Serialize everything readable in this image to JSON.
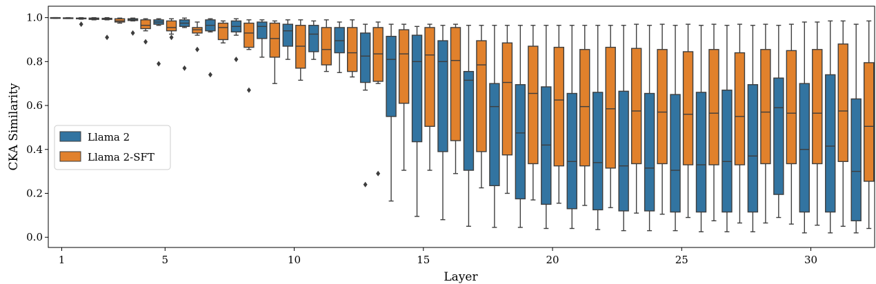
{
  "chart_data": {
    "type": "boxplot",
    "xlabel": "Layer",
    "ylabel": "CKA Similarity",
    "ylim": [
      -0.05,
      1.05
    ],
    "yticks": [
      0.0,
      0.2,
      0.4,
      0.6,
      0.8,
      1.0
    ],
    "ytick_labels": [
      "0.0",
      "0.2",
      "0.4",
      "0.6",
      "0.8",
      "1.0"
    ],
    "xticks": [
      1,
      5,
      10,
      15,
      20,
      25,
      30
    ],
    "xtick_labels": [
      "1",
      "5",
      "10",
      "15",
      "20",
      "25",
      "30"
    ],
    "layers": [
      1,
      2,
      3,
      4,
      5,
      6,
      7,
      8,
      9,
      10,
      11,
      12,
      13,
      14,
      15,
      16,
      17,
      18,
      19,
      20,
      21,
      22,
      23,
      24,
      25,
      26,
      27,
      28,
      29,
      30,
      31,
      32
    ],
    "legend_position": "center-left",
    "series": [
      {
        "name": "Llama 2",
        "color": "#3274a1",
        "boxes": [
          {
            "layer": 1,
            "low": 0.997,
            "q1": 0.998,
            "median": 0.999,
            "q3": 1.0,
            "high": 1.0,
            "outliers": []
          },
          {
            "layer": 2,
            "low": 0.993,
            "q1": 0.995,
            "median": 0.997,
            "q3": 0.998,
            "high": 1.0,
            "outliers": [
              0.97
            ]
          },
          {
            "layer": 3,
            "low": 0.99,
            "q1": 0.992,
            "median": 0.994,
            "q3": 0.997,
            "high": 1.0,
            "outliers": [
              0.91
            ]
          },
          {
            "layer": 4,
            "low": 0.985,
            "q1": 0.987,
            "median": 0.99,
            "q3": 0.995,
            "high": 0.998,
            "outliers": [
              0.93
            ]
          },
          {
            "layer": 5,
            "low": 0.965,
            "q1": 0.97,
            "median": 0.98,
            "q3": 0.99,
            "high": 0.995,
            "outliers": [
              0.79
            ]
          },
          {
            "layer": 6,
            "low": 0.955,
            "q1": 0.96,
            "median": 0.975,
            "q3": 0.99,
            "high": 0.998,
            "outliers": [
              0.77
            ]
          },
          {
            "layer": 7,
            "low": 0.935,
            "q1": 0.94,
            "median": 0.965,
            "q3": 0.99,
            "high": 0.995,
            "outliers": [
              0.74
            ]
          },
          {
            "layer": 8,
            "low": 0.92,
            "q1": 0.935,
            "median": 0.96,
            "q3": 0.985,
            "high": 0.995,
            "outliers": [
              0.81
            ]
          },
          {
            "layer": 9,
            "low": 0.82,
            "q1": 0.905,
            "median": 0.96,
            "q3": 0.98,
            "high": 0.99,
            "outliers": []
          },
          {
            "layer": 10,
            "low": 0.81,
            "q1": 0.87,
            "median": 0.94,
            "q3": 0.97,
            "high": 0.99,
            "outliers": []
          },
          {
            "layer": 11,
            "low": 0.81,
            "q1": 0.845,
            "median": 0.925,
            "q3": 0.965,
            "high": 0.985,
            "outliers": []
          },
          {
            "layer": 12,
            "low": 0.75,
            "q1": 0.84,
            "median": 0.895,
            "q3": 0.955,
            "high": 0.98,
            "outliers": []
          },
          {
            "layer": 13,
            "low": 0.67,
            "q1": 0.705,
            "median": 0.825,
            "q3": 0.93,
            "high": 0.97,
            "outliers": [
              0.24
            ]
          },
          {
            "layer": 14,
            "low": 0.165,
            "q1": 0.55,
            "median": 0.81,
            "q3": 0.915,
            "high": 0.97,
            "outliers": []
          },
          {
            "layer": 15,
            "low": 0.095,
            "q1": 0.435,
            "median": 0.8,
            "q3": 0.92,
            "high": 0.96,
            "outliers": []
          },
          {
            "layer": 16,
            "low": 0.08,
            "q1": 0.39,
            "median": 0.8,
            "q3": 0.895,
            "high": 0.965,
            "outliers": []
          },
          {
            "layer": 17,
            "low": 0.05,
            "q1": 0.305,
            "median": 0.715,
            "q3": 0.755,
            "high": 0.965,
            "outliers": []
          },
          {
            "layer": 18,
            "low": 0.045,
            "q1": 0.235,
            "median": 0.595,
            "q3": 0.7,
            "high": 0.965,
            "outliers": []
          },
          {
            "layer": 19,
            "low": 0.045,
            "q1": 0.175,
            "median": 0.475,
            "q3": 0.695,
            "high": 0.965,
            "outliers": []
          },
          {
            "layer": 20,
            "low": 0.04,
            "q1": 0.15,
            "median": 0.42,
            "q3": 0.685,
            "high": 0.965,
            "outliers": []
          },
          {
            "layer": 21,
            "low": 0.04,
            "q1": 0.13,
            "median": 0.345,
            "q3": 0.655,
            "high": 0.965,
            "outliers": []
          },
          {
            "layer": 22,
            "low": 0.035,
            "q1": 0.125,
            "median": 0.34,
            "q3": 0.66,
            "high": 0.965,
            "outliers": []
          },
          {
            "layer": 23,
            "low": 0.03,
            "q1": 0.12,
            "median": 0.325,
            "q3": 0.665,
            "high": 0.965,
            "outliers": []
          },
          {
            "layer": 24,
            "low": 0.03,
            "q1": 0.12,
            "median": 0.315,
            "q3": 0.655,
            "high": 0.965,
            "outliers": []
          },
          {
            "layer": 25,
            "low": 0.03,
            "q1": 0.115,
            "median": 0.305,
            "q3": 0.65,
            "high": 0.965,
            "outliers": []
          },
          {
            "layer": 26,
            "low": 0.025,
            "q1": 0.115,
            "median": 0.33,
            "q3": 0.66,
            "high": 0.965,
            "outliers": []
          },
          {
            "layer": 27,
            "low": 0.025,
            "q1": 0.115,
            "median": 0.345,
            "q3": 0.67,
            "high": 0.965,
            "outliers": []
          },
          {
            "layer": 28,
            "low": 0.025,
            "q1": 0.115,
            "median": 0.37,
            "q3": 0.695,
            "high": 0.965,
            "outliers": []
          },
          {
            "layer": 29,
            "low": 0.09,
            "q1": 0.195,
            "median": 0.59,
            "q3": 0.725,
            "high": 0.965,
            "outliers": []
          },
          {
            "layer": 30,
            "low": 0.02,
            "q1": 0.115,
            "median": 0.4,
            "q3": 0.7,
            "high": 0.98,
            "outliers": []
          },
          {
            "layer": 31,
            "low": 0.02,
            "q1": 0.115,
            "median": 0.415,
            "q3": 0.74,
            "high": 0.985,
            "outliers": []
          },
          {
            "layer": 32,
            "low": 0.02,
            "q1": 0.075,
            "median": 0.3,
            "q3": 0.63,
            "high": 0.97,
            "outliers": []
          }
        ]
      },
      {
        "name": "Llama 2-SFT",
        "color": "#e1812c",
        "boxes": [
          {
            "layer": 1,
            "low": 0.996,
            "q1": 0.997,
            "median": 0.998,
            "q3": 0.999,
            "high": 1.0,
            "outliers": []
          },
          {
            "layer": 2,
            "low": 0.99,
            "q1": 0.992,
            "median": 0.995,
            "q3": 0.998,
            "high": 1.0,
            "outliers": []
          },
          {
            "layer": 3,
            "low": 0.975,
            "q1": 0.98,
            "median": 0.985,
            "q3": 0.995,
            "high": 0.998,
            "outliers": []
          },
          {
            "layer": 4,
            "low": 0.94,
            "q1": 0.95,
            "median": 0.965,
            "q3": 0.99,
            "high": 0.995,
            "outliers": [
              0.89
            ]
          },
          {
            "layer": 5,
            "low": 0.925,
            "q1": 0.94,
            "median": 0.955,
            "q3": 0.985,
            "high": 0.995,
            "outliers": [
              0.91
            ]
          },
          {
            "layer": 6,
            "low": 0.92,
            "q1": 0.93,
            "median": 0.945,
            "q3": 0.955,
            "high": 0.98,
            "outliers": [
              0.855
            ]
          },
          {
            "layer": 7,
            "low": 0.885,
            "q1": 0.9,
            "median": 0.955,
            "q3": 0.975,
            "high": 0.985,
            "outliers": []
          },
          {
            "layer": 8,
            "low": 0.855,
            "q1": 0.865,
            "median": 0.93,
            "q3": 0.975,
            "high": 0.99,
            "outliers": [
              0.67
            ]
          },
          {
            "layer": 9,
            "low": 0.7,
            "q1": 0.82,
            "median": 0.905,
            "q3": 0.975,
            "high": 0.985,
            "outliers": []
          },
          {
            "layer": 10,
            "low": 0.715,
            "q1": 0.77,
            "median": 0.87,
            "q3": 0.965,
            "high": 0.99,
            "outliers": []
          },
          {
            "layer": 11,
            "low": 0.755,
            "q1": 0.785,
            "median": 0.855,
            "q3": 0.955,
            "high": 0.99,
            "outliers": []
          },
          {
            "layer": 12,
            "low": 0.73,
            "q1": 0.755,
            "median": 0.84,
            "q3": 0.955,
            "high": 0.99,
            "outliers": []
          },
          {
            "layer": 13,
            "low": 0.7,
            "q1": 0.71,
            "median": 0.835,
            "q3": 0.955,
            "high": 0.98,
            "outliers": [
              0.29
            ]
          },
          {
            "layer": 14,
            "low": 0.305,
            "q1": 0.61,
            "median": 0.835,
            "q3": 0.945,
            "high": 0.97,
            "outliers": []
          },
          {
            "layer": 15,
            "low": 0.305,
            "q1": 0.505,
            "median": 0.83,
            "q3": 0.955,
            "high": 0.97,
            "outliers": []
          },
          {
            "layer": 16,
            "low": 0.29,
            "q1": 0.44,
            "median": 0.805,
            "q3": 0.955,
            "high": 0.97,
            "outliers": []
          },
          {
            "layer": 17,
            "low": 0.225,
            "q1": 0.39,
            "median": 0.785,
            "q3": 0.895,
            "high": 0.965,
            "outliers": []
          },
          {
            "layer": 18,
            "low": 0.2,
            "q1": 0.375,
            "median": 0.705,
            "q3": 0.885,
            "high": 0.965,
            "outliers": []
          },
          {
            "layer": 19,
            "low": 0.17,
            "q1": 0.335,
            "median": 0.655,
            "q3": 0.87,
            "high": 0.965,
            "outliers": []
          },
          {
            "layer": 20,
            "low": 0.155,
            "q1": 0.325,
            "median": 0.625,
            "q3": 0.865,
            "high": 0.965,
            "outliers": []
          },
          {
            "layer": 21,
            "low": 0.145,
            "q1": 0.325,
            "median": 0.595,
            "q3": 0.855,
            "high": 0.965,
            "outliers": []
          },
          {
            "layer": 22,
            "low": 0.135,
            "q1": 0.315,
            "median": 0.585,
            "q3": 0.865,
            "high": 0.965,
            "outliers": []
          },
          {
            "layer": 23,
            "low": 0.11,
            "q1": 0.335,
            "median": 0.575,
            "q3": 0.86,
            "high": 0.97,
            "outliers": []
          },
          {
            "layer": 24,
            "low": 0.105,
            "q1": 0.335,
            "median": 0.57,
            "q3": 0.855,
            "high": 0.97,
            "outliers": []
          },
          {
            "layer": 25,
            "low": 0.09,
            "q1": 0.33,
            "median": 0.56,
            "q3": 0.845,
            "high": 0.97,
            "outliers": []
          },
          {
            "layer": 26,
            "low": 0.075,
            "q1": 0.33,
            "median": 0.565,
            "q3": 0.855,
            "high": 0.97,
            "outliers": []
          },
          {
            "layer": 27,
            "low": 0.065,
            "q1": 0.33,
            "median": 0.55,
            "q3": 0.84,
            "high": 0.97,
            "outliers": []
          },
          {
            "layer": 28,
            "low": 0.065,
            "q1": 0.335,
            "median": 0.57,
            "q3": 0.855,
            "high": 0.97,
            "outliers": []
          },
          {
            "layer": 29,
            "low": 0.06,
            "q1": 0.335,
            "median": 0.565,
            "q3": 0.85,
            "high": 0.97,
            "outliers": []
          },
          {
            "layer": 30,
            "low": 0.055,
            "q1": 0.335,
            "median": 0.565,
            "q3": 0.855,
            "high": 0.98,
            "outliers": []
          },
          {
            "layer": 31,
            "low": 0.05,
            "q1": 0.345,
            "median": 0.575,
            "q3": 0.88,
            "high": 0.985,
            "outliers": []
          },
          {
            "layer": 32,
            "low": 0.04,
            "q1": 0.255,
            "median": 0.505,
            "q3": 0.795,
            "high": 0.985,
            "outliers": []
          }
        ]
      }
    ]
  }
}
